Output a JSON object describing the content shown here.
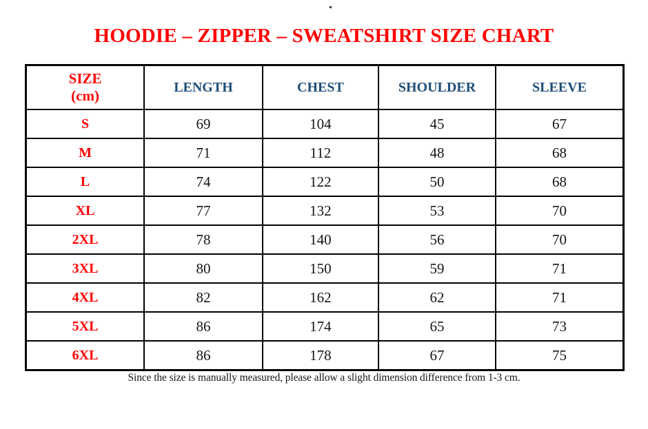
{
  "page": {
    "stray_mark": "."
  },
  "colors": {
    "title_red": "#ff0000",
    "size_label_red": "#ff0000",
    "header_blue": "#1f4e79",
    "value_black": "#141414",
    "border_black": "#000000",
    "background": "#ffffff"
  },
  "header_display": {
    "size_line1": "SIZE",
    "size_line2": "(cm)",
    "measures": [
      "LENGTH",
      "CHEST",
      "SHOULDER",
      "SLEEVE"
    ]
  },
  "chart_data": {
    "type": "table",
    "title": "HOODIE – ZIPPER – SWEATSHIRT SIZE CHART",
    "columns": [
      "SIZE (cm)",
      "LENGTH",
      "CHEST",
      "SHOULDER",
      "SLEEVE"
    ],
    "rows": [
      [
        "S",
        69,
        104,
        45,
        67
      ],
      [
        "M",
        71,
        112,
        48,
        68
      ],
      [
        "L",
        74,
        122,
        50,
        68
      ],
      [
        "XL",
        77,
        132,
        53,
        70
      ],
      [
        "2XL",
        78,
        140,
        56,
        70
      ],
      [
        "3XL",
        80,
        150,
        59,
        71
      ],
      [
        "4XL",
        82,
        162,
        62,
        71
      ],
      [
        "5XL",
        86,
        174,
        65,
        73
      ],
      [
        "6XL",
        86,
        178,
        67,
        75
      ]
    ],
    "footnote": "Since the size is manually measured, please allow a slight dimension difference from 1-3 cm."
  }
}
